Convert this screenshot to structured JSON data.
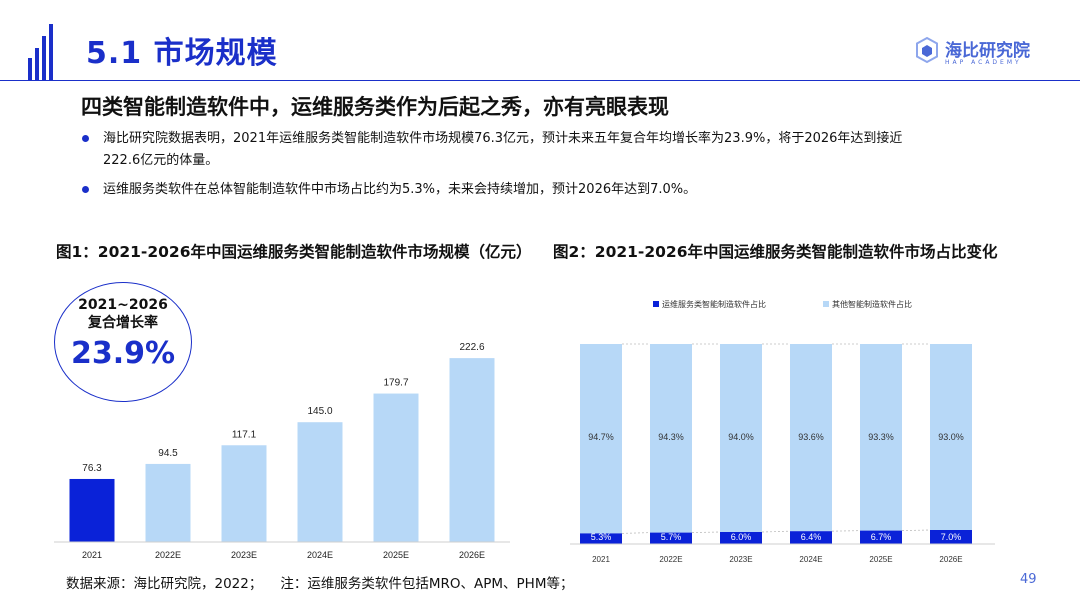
{
  "header": {
    "title": "5.1 市场规模",
    "logo_text": "海比研究院",
    "logo_sub": "HAP ACADEMY",
    "accent": "#1a2fc9"
  },
  "subtitle": "四类智能制造软件中，运维服务类作为后起之秀，亦有亮眼表现",
  "bullets": [
    "海比研究院数据表明，2021年运维服务类智能制造软件市场规模76.3亿元，预计未来五年复合年均增长率为23.9%，将于2026年达到接近222.6亿元的体量。",
    "运维服务类软件在总体智能制造软件中市场占比约为5.3%，未来会持续增加，预计2026年达到7.0%。"
  ],
  "cagr": {
    "line1": "2021~2026",
    "line2": "复合增长率",
    "value": "23.9%"
  },
  "footer": {
    "source": "数据来源：海比研究院，2022；",
    "note": "注：运维服务类软件包括MRO、APM、PHM等；"
  },
  "page_number": "49",
  "chart_data": [
    {
      "type": "bar",
      "title": "图1：2021-2026年中国运维服务类智能制造软件市场规模（亿元）",
      "categories": [
        "2021",
        "2022E",
        "2023E",
        "2024E",
        "2025E",
        "2026E"
      ],
      "values": [
        76.3,
        94.5,
        117.1,
        145.0,
        179.7,
        222.6
      ],
      "value_labels": [
        "76.3",
        "94.5",
        "117.1",
        "145.0",
        "179.7",
        "222.6"
      ],
      "colors": [
        "#0a22d8",
        "#b7d8f7",
        "#b7d8f7",
        "#b7d8f7",
        "#b7d8f7",
        "#b7d8f7"
      ],
      "ylim": [
        0,
        230
      ],
      "grid": false
    },
    {
      "type": "bar",
      "stacked": true,
      "title": "图2：2021-2026年中国运维服务类智能制造软件市场占比变化",
      "categories": [
        "2021",
        "2022E",
        "2023E",
        "2024E",
        "2025E",
        "2026E"
      ],
      "series": [
        {
          "name": "运维服务类智能制造软件占比",
          "values": [
            5.3,
            5.7,
            6.0,
            6.4,
            6.7,
            7.0
          ],
          "labels": [
            "5.3%",
            "5.7%",
            "6.0%",
            "6.4%",
            "6.7%",
            "7.0%"
          ],
          "color": "#0a22d8"
        },
        {
          "name": "其他智能制造软件占比",
          "values": [
            94.7,
            94.3,
            94.0,
            93.6,
            93.3,
            93.0
          ],
          "labels": [
            "94.7%",
            "94.3%",
            "94.0%",
            "93.6%",
            "93.3%",
            "93.0%"
          ],
          "color": "#b7d8f7"
        }
      ],
      "ylim": [
        0,
        100
      ],
      "legend": "top",
      "grid": false
    }
  ]
}
